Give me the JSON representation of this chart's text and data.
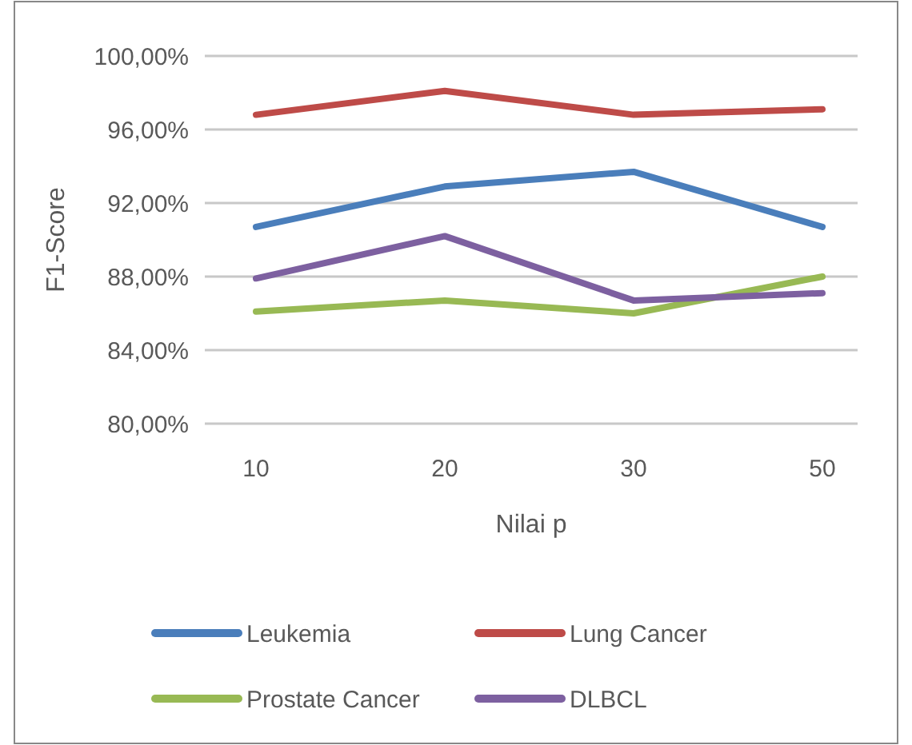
{
  "chart_data": {
    "type": "line",
    "xlabel": "Nilai p",
    "ylabel": "F1-Score",
    "categories": [
      "10",
      "20",
      "30",
      "50"
    ],
    "series": [
      {
        "name": "Leukemia",
        "color": "#4a7ebb",
        "values": [
          90.7,
          92.9,
          93.7,
          90.7
        ]
      },
      {
        "name": "Lung Cancer",
        "color": "#be4b48",
        "values": [
          96.8,
          98.1,
          96.8,
          97.1
        ]
      },
      {
        "name": "Prostate Cancer",
        "color": "#98b954",
        "values": [
          86.1,
          86.7,
          86.0,
          88.0
        ]
      },
      {
        "name": "DLBCL",
        "color": "#7d60a0",
        "values": [
          87.9,
          90.2,
          86.7,
          87.1
        ]
      }
    ],
    "ylim": [
      80,
      100
    ],
    "yticks": [
      {
        "value": 80,
        "label": "80,00%"
      },
      {
        "value": 84,
        "label": "84,00%"
      },
      {
        "value": 88,
        "label": "88,00%"
      },
      {
        "value": 92,
        "label": "92,00%"
      },
      {
        "value": 96,
        "label": "96,00%"
      },
      {
        "value": 100,
        "label": "100,00%"
      }
    ],
    "grid": "y",
    "legend": "bottom",
    "marker": "none",
    "line_style": "solid"
  }
}
